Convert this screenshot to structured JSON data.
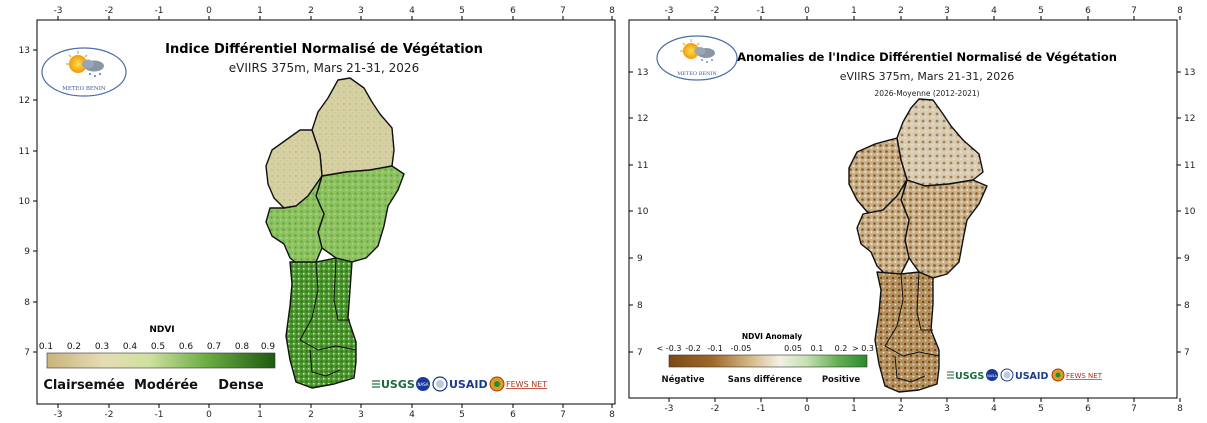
{
  "left": {
    "title": "Indice Différentiel Normalisé de Végétation",
    "subtitle": "eVIIRS 375m, Mars 21-31, 2026",
    "logo_label": "METEO BENIN",
    "x_ticks": [
      "-3",
      "-2",
      "-1",
      "0",
      "1",
      "2",
      "3",
      "4",
      "5",
      "6",
      "7",
      "8"
    ],
    "y_ticks": [
      "13",
      "12",
      "11",
      "10",
      "9",
      "8",
      "7"
    ],
    "colorbar": {
      "title": "NDVI",
      "ticks": [
        "0.1",
        "0.2",
        "0.3",
        "0.4",
        "0.5",
        "0.6",
        "0.7",
        "0.8",
        "0.9"
      ],
      "colors": [
        "#c8b47a",
        "#d8c896",
        "#e6dcb4",
        "#e0e4b0",
        "#b8d88a",
        "#8cc260",
        "#5ea43c",
        "#3c8424",
        "#1e5a10"
      ],
      "classes": [
        "Clairsemée",
        "Modérée",
        "Dense"
      ]
    },
    "partners": [
      "USGS",
      "NASA",
      "USAID",
      "FEWS NET"
    ]
  },
  "right": {
    "title": "Anomalies de l'Indice Différentiel Normalisé de Végétation",
    "subtitle": "eVIIRS 375m, Mars 21-31, 2026",
    "subtitle2": "2026-Moyenne (2012-2021)",
    "logo_label": "METEO BENIN",
    "x_ticks": [
      "-3",
      "-2",
      "-1",
      "0",
      "1",
      "2",
      "3",
      "4",
      "5",
      "6",
      "7",
      "8"
    ],
    "y_ticks": [
      "13",
      "12",
      "11",
      "10",
      "9",
      "8",
      "7"
    ],
    "colorbar": {
      "title": "NDVI Anomaly",
      "ticks": [
        "< -0.3",
        "-0.2",
        "-0.1",
        "-0.05",
        "0.05",
        "0.1",
        "0.2",
        "> 0.3"
      ],
      "colors": [
        "#7a4a14",
        "#a0682a",
        "#c89a60",
        "#e2cca6",
        "#f4efe4",
        "#b6dca6",
        "#66b054",
        "#2a8a2a"
      ],
      "classes": [
        "Négative",
        "Sans différence",
        "Positive"
      ]
    },
    "partners": [
      "USGS",
      "NASA",
      "USAID",
      "FEWS NET"
    ]
  },
  "colors": {
    "sparse": "#d6c89a",
    "dense": "#3e8a26",
    "negative": "#8a5a22",
    "neutral": "#e6e2d6",
    "positive": "#3a9a3a"
  }
}
